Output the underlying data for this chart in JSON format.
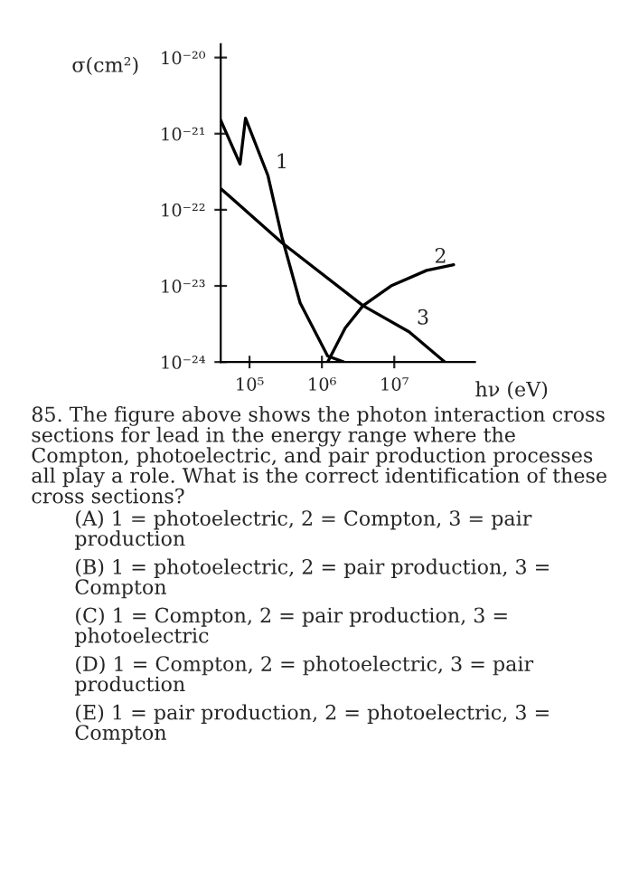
{
  "chart_data": {
    "type": "line",
    "xlabel": "hν (eV)",
    "ylabel": "σ(cm²)",
    "log": "xy",
    "grid": false,
    "legend": false,
    "marker": "none",
    "line_style": "solid",
    "xlim": [
      40000,
      130000000
    ],
    "ylim": [
      1e-24,
      1.5e-20
    ],
    "xticks": [
      {
        "value": 100000,
        "label": "10⁵"
      },
      {
        "value": 1000000,
        "label": "10⁶"
      },
      {
        "value": 10000000,
        "label": "10⁷"
      }
    ],
    "yticks": [
      {
        "value": 1e-24,
        "label": "10⁻²⁴"
      },
      {
        "value": 1e-23,
        "label": "10⁻²³"
      },
      {
        "value": 1e-22,
        "label": "10⁻²²"
      },
      {
        "value": 1e-21,
        "label": "10⁻²¹"
      },
      {
        "value": 1e-20,
        "label": "10⁻²⁰"
      }
    ],
    "series": [
      {
        "name": "1",
        "color": "#000000",
        "x": [
          40000,
          74000,
          88000,
          180000,
          280000,
          500000,
          1200000,
          2000000
        ],
        "values": [
          1.5e-21,
          4e-22,
          1.6e-21,
          2.8e-22,
          4.4e-23,
          6e-24,
          1.2e-24,
          1e-24
        ]
      },
      {
        "name": "2",
        "color": "#000000",
        "x": [
          1200000,
          2100000,
          3700000,
          9000000,
          28000000,
          66000000
        ],
        "values": [
          1e-24,
          2.8e-24,
          5.5e-24,
          1e-23,
          1.6e-23,
          1.9e-23
        ]
      },
      {
        "name": "3",
        "color": "#000000",
        "x": [
          40000,
          280000,
          3700000,
          16000000,
          50000000
        ],
        "values": [
          1.9e-22,
          3.7e-23,
          5.5e-24,
          2.5e-24,
          1e-24
        ]
      }
    ],
    "annotations": [
      "85. The figure above shows the photon interaction cross sections for lead in the energy range where the Compton, photoelectric, and pair production processes all play a role. What is the correct identification of these cross sections?",
      "(A) 1 = photoelectric, 2 = Compton, 3 = pair production",
      "(B) 1 = photoelectric, 2 = pair production, 3 = Compton",
      "(C) 1 = Compton, 2 = pair production, 3 = photoelectric",
      "(D) 1 = Compton, 2 = photoelectric, 3 = pair production",
      "(E) 1 = pair production, 2 = photoelectric, 3 = Compton"
    ]
  }
}
